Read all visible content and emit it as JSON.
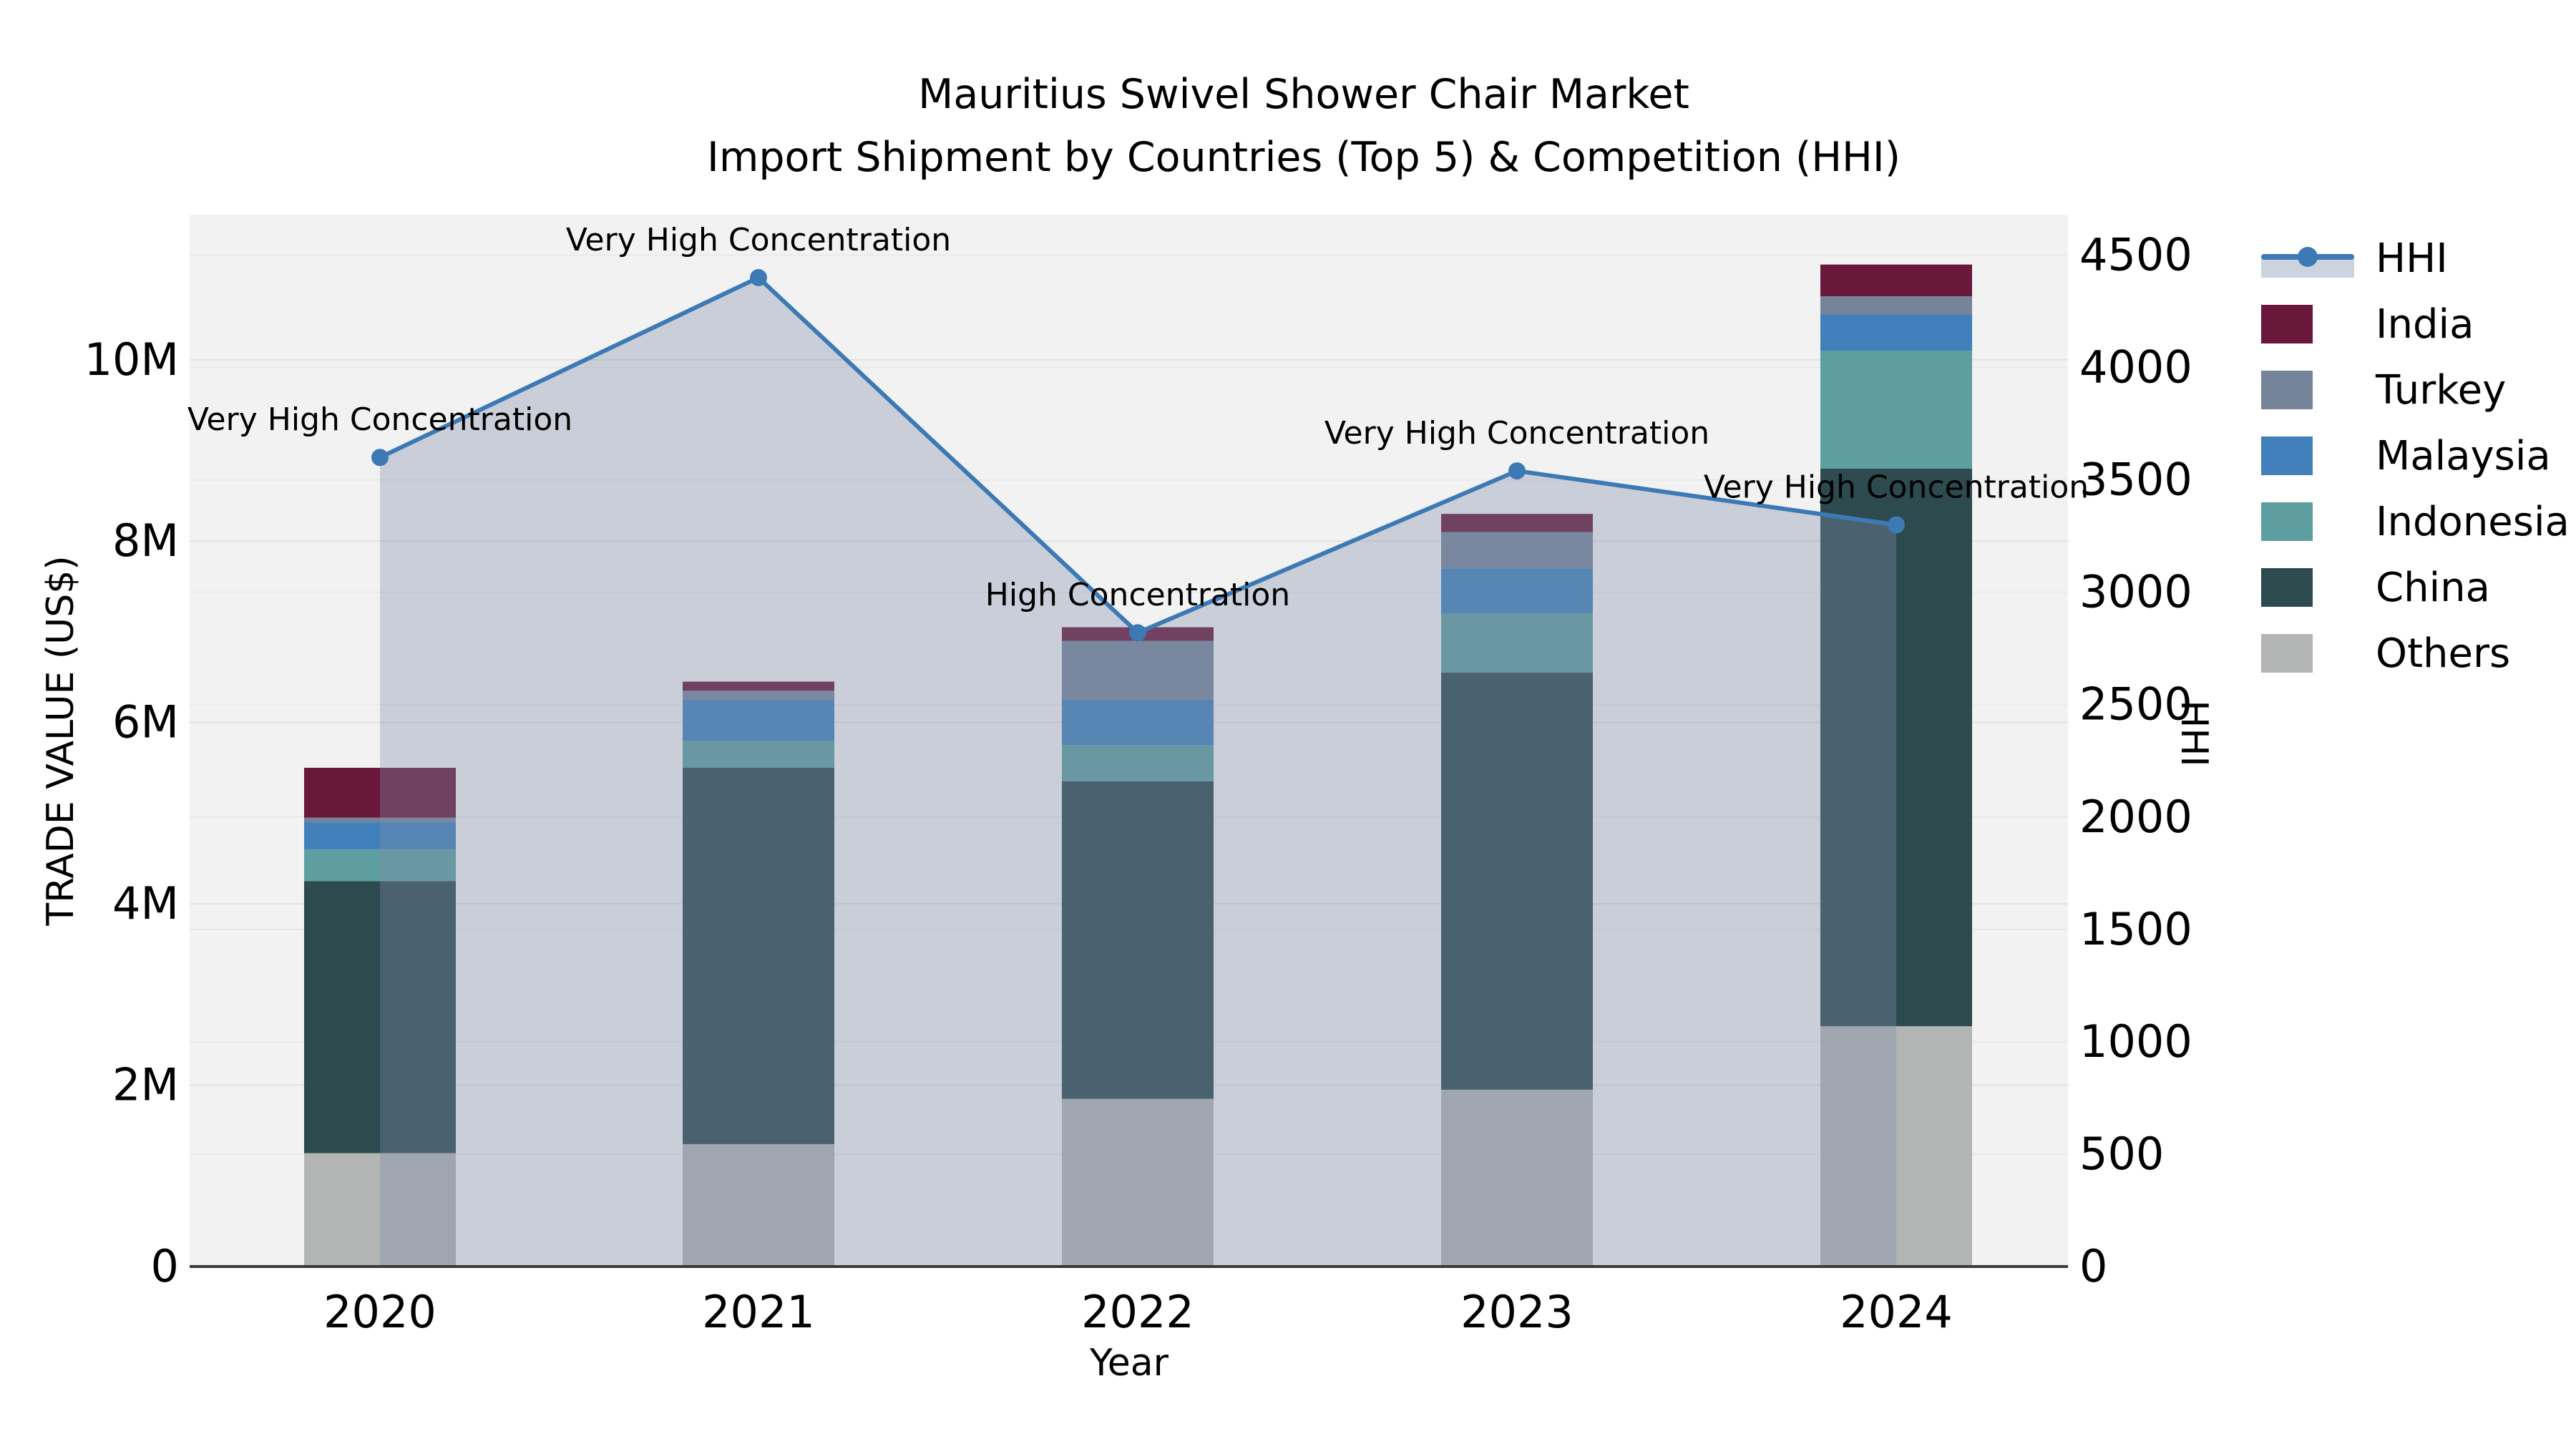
{
  "title": {
    "line1": "Mauritius Swivel Shower Chair Market",
    "line2": "Import Shipment by Countries (Top 5) & Competition (HHI)"
  },
  "chart_data": {
    "type": "bar+line",
    "title": "Mauritius Swivel Shower Chair Market Import Shipment by Countries (Top 5) & Competition (HHI)",
    "categories": [
      "2020",
      "2021",
      "2022",
      "2023",
      "2024"
    ],
    "stack_order_note": "series listed bottom-to-top of the stacked bars; values are trade value in millions US$",
    "series": [
      {
        "name": "Others",
        "color": "#b3b5b5",
        "values": [
          1.25,
          1.35,
          1.85,
          1.95,
          2.65
        ]
      },
      {
        "name": "China",
        "color": "#2d4a4f",
        "values": [
          3.0,
          4.15,
          3.5,
          4.6,
          6.15
        ]
      },
      {
        "name": "Indonesia",
        "color": "#5d9fa0",
        "values": [
          0.35,
          0.3,
          0.4,
          0.65,
          1.3
        ]
      },
      {
        "name": "Malaysia",
        "color": "#4180ba",
        "values": [
          0.3,
          0.45,
          0.5,
          0.5,
          0.4
        ]
      },
      {
        "name": "Turkey",
        "color": "#76849a",
        "values": [
          0.05,
          0.1,
          0.65,
          0.4,
          0.2
        ]
      },
      {
        "name": "India",
        "color": "#69173b",
        "values": [
          0.55,
          0.1,
          0.15,
          0.2,
          0.35
        ]
      }
    ],
    "line_series": {
      "name": "HHI",
      "color": "#3d7ab5",
      "area_color": "rgba(127,141,169,0.36)",
      "values": [
        3600,
        4400,
        2820,
        3540,
        3300
      ]
    },
    "annotations": [
      {
        "category": "2020",
        "text": "Very High Concentration"
      },
      {
        "category": "2021",
        "text": "Very High Concentration"
      },
      {
        "category": "2022",
        "text": "High Concentration"
      },
      {
        "category": "2023",
        "text": "Very High Concentration"
      },
      {
        "category": "2024",
        "text": "Very High Concentration"
      }
    ],
    "xlabel": "Year",
    "left_axis": {
      "title": "TRADE VALUE (US$)",
      "tick_labels": [
        "0",
        "2M",
        "4M",
        "6M",
        "8M",
        "10M"
      ],
      "tick_values": [
        0,
        2,
        4,
        6,
        8,
        10
      ],
      "ylim": [
        0,
        11.6
      ]
    },
    "right_axis": {
      "title": "HHI",
      "tick_labels": [
        "0",
        "500",
        "1000",
        "1500",
        "2000",
        "2500",
        "3000",
        "3500",
        "4000",
        "4500"
      ],
      "tick_values": [
        0,
        500,
        1000,
        1500,
        2000,
        2500,
        3000,
        3500,
        4000,
        4500
      ],
      "ylim": [
        0,
        4680
      ]
    },
    "grid": true,
    "legend_position": "right"
  },
  "legend": {
    "items": [
      {
        "label": "HHI",
        "type": "line",
        "color": "#3d7ab5"
      },
      {
        "label": "India",
        "type": "swatch",
        "color": "#69173b"
      },
      {
        "label": "Turkey",
        "type": "swatch",
        "color": "#76849a"
      },
      {
        "label": "Malaysia",
        "type": "swatch",
        "color": "#4180ba"
      },
      {
        "label": "Indonesia",
        "type": "swatch",
        "color": "#5d9fa0"
      },
      {
        "label": "China",
        "type": "swatch",
        "color": "#2d4a4f"
      },
      {
        "label": "Others",
        "type": "swatch",
        "color": "#b3b5b5"
      }
    ]
  },
  "colors": {
    "plot_background": "#f2f2f2",
    "page_background": "#ffffff",
    "grid_major": "#e2e2e2",
    "grid_minor": "#e9e9e9",
    "axis_spine": "#3a3a3a",
    "text": "#000000"
  }
}
